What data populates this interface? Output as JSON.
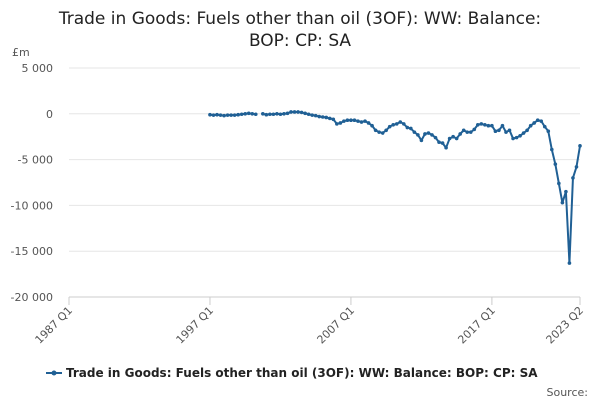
{
  "chart_data": {
    "type": "line",
    "title": [
      "Trade in Goods: Fuels other than oil (3OF): WW: Balance:",
      "BOP: CP: SA"
    ],
    "y_unit_label": "£m",
    "source": "Source:",
    "xlim": [
      1987,
      2023.25
    ],
    "xticks": [
      {
        "value": 1987,
        "label": "1987 Q1"
      },
      {
        "value": 1997,
        "label": "1997 Q1"
      },
      {
        "value": 2007,
        "label": "2007 Q1"
      },
      {
        "value": 2017,
        "label": "2017 Q1"
      },
      {
        "value": 2023.25,
        "label": "2023 Q2"
      }
    ],
    "ylim": [
      -20000,
      5000
    ],
    "yticks": [
      {
        "value": -20000,
        "label": "-20 000"
      },
      {
        "value": -15000,
        "label": "-15 000"
      },
      {
        "value": -10000,
        "label": "-10 000"
      },
      {
        "value": -5000,
        "label": "-5 000"
      },
      0,
      {
        "value": 5000,
        "label": "5 000"
      }
    ],
    "grid": true,
    "x": [
      1997,
      1997.25,
      1997.5,
      1997.75,
      1998,
      1998.25,
      1998.5,
      1998.75,
      1999,
      1999.25,
      1999.5,
      1999.75,
      2000,
      2000.25,
      2000.5,
      2000.75,
      2001,
      2001.25,
      2001.5,
      2001.75,
      2002,
      2002.25,
      2002.5,
      2002.75,
      2003,
      2003.25,
      2003.5,
      2003.75,
      2004,
      2004.25,
      2004.5,
      2004.75,
      2005,
      2005.25,
      2005.5,
      2005.75,
      2006,
      2006.25,
      2006.5,
      2006.75,
      2007,
      2007.25,
      2007.5,
      2007.75,
      2008,
      2008.25,
      2008.5,
      2008.75,
      2009,
      2009.25,
      2009.5,
      2009.75,
      2010,
      2010.25,
      2010.5,
      2010.75,
      2011,
      2011.25,
      2011.5,
      2011.75,
      2012,
      2012.25,
      2012.5,
      2012.75,
      2013,
      2013.25,
      2013.5,
      2013.75,
      2014,
      2014.25,
      2014.5,
      2014.75,
      2015,
      2015.25,
      2015.5,
      2015.75,
      2016,
      2016.25,
      2016.5,
      2016.75,
      2017,
      2017.25,
      2017.5,
      2017.75,
      2018,
      2018.25,
      2018.5,
      2018.75,
      2019,
      2019.25,
      2019.5,
      2019.75,
      2020,
      2020.25,
      2020.5,
      2020.75,
      2021,
      2021.25,
      2021.5,
      2021.75,
      2022,
      2022.25,
      2022.5,
      2022.75,
      2023,
      2023.25
    ],
    "series": [
      {
        "name": "Trade in Goods: Fuels other than oil (3OF): WW: Balance: BOP: CP: SA",
        "color": "#206095",
        "values": [
          -100,
          -150,
          -100,
          -150,
          -200,
          -150,
          -150,
          -150,
          -100,
          -50,
          0,
          50,
          0,
          -50,
          null,
          0,
          -100,
          -50,
          -50,
          0,
          -50,
          0,
          50,
          200,
          200,
          200,
          150,
          50,
          -50,
          -150,
          -200,
          -300,
          -350,
          -400,
          -500,
          -600,
          -1100,
          -1000,
          -800,
          -700,
          -700,
          -700,
          -800,
          -900,
          -800,
          -1000,
          -1300,
          -1800,
          -2000,
          -2100,
          -1800,
          -1400,
          -1200,
          -1100,
          -900,
          -1100,
          -1500,
          -1600,
          -2000,
          -2300,
          -2900,
          -2200,
          -2100,
          -2300,
          -2600,
          -3100,
          -3200,
          -3700,
          -2700,
          -2500,
          -2700,
          -2200,
          -1800,
          -2000,
          -2000,
          -1700,
          -1200,
          -1100,
          -1200,
          -1300,
          -1300,
          -1900,
          -1800,
          -1300,
          -2000,
          -1800,
          -2700,
          -2600,
          -2400,
          -2100,
          -1800,
          -1300,
          -1000,
          -700,
          -800,
          -1400,
          -1900,
          -3900,
          -5500,
          -7600,
          -9700,
          -8500,
          -16300,
          -7000,
          -5800,
          -3500
        ]
      }
    ]
  }
}
